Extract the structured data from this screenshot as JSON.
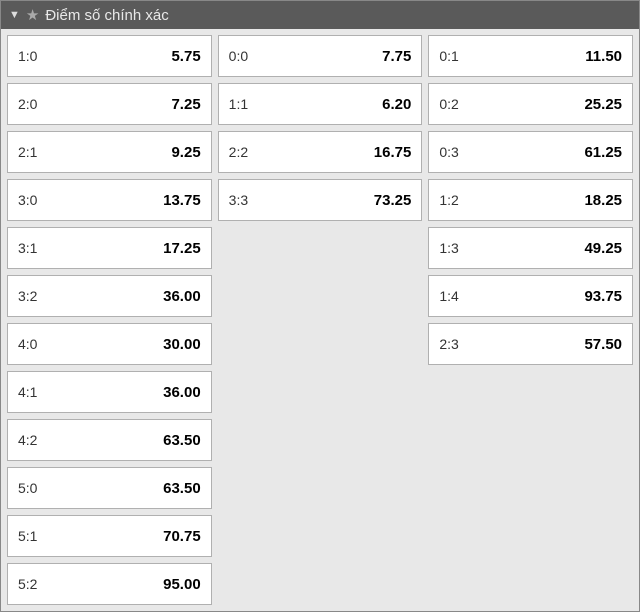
{
  "header": {
    "title": "Điểm số chính xác"
  },
  "columns": [
    {
      "cells": [
        {
          "score": "1:0",
          "odds": "5.75"
        },
        {
          "score": "2:0",
          "odds": "7.25"
        },
        {
          "score": "2:1",
          "odds": "9.25"
        },
        {
          "score": "3:0",
          "odds": "13.75"
        },
        {
          "score": "3:1",
          "odds": "17.25"
        },
        {
          "score": "3:2",
          "odds": "36.00"
        },
        {
          "score": "4:0",
          "odds": "30.00"
        },
        {
          "score": "4:1",
          "odds": "36.00"
        },
        {
          "score": "4:2",
          "odds": "63.50"
        },
        {
          "score": "5:0",
          "odds": "63.50"
        },
        {
          "score": "5:1",
          "odds": "70.75"
        },
        {
          "score": "5:2",
          "odds": "95.00"
        }
      ]
    },
    {
      "cells": [
        {
          "score": "0:0",
          "odds": "7.75"
        },
        {
          "score": "1:1",
          "odds": "6.20"
        },
        {
          "score": "2:2",
          "odds": "16.75"
        },
        {
          "score": "3:3",
          "odds": "73.25"
        }
      ]
    },
    {
      "cells": [
        {
          "score": "0:1",
          "odds": "11.50"
        },
        {
          "score": "0:2",
          "odds": "25.25"
        },
        {
          "score": "0:3",
          "odds": "61.25"
        },
        {
          "score": "1:2",
          "odds": "18.25"
        },
        {
          "score": "1:3",
          "odds": "49.25"
        },
        {
          "score": "1:4",
          "odds": "93.75"
        },
        {
          "score": "2:3",
          "odds": "57.50"
        }
      ]
    }
  ]
}
